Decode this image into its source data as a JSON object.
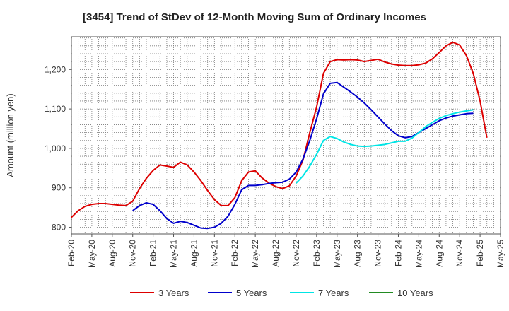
{
  "chart_data": {
    "type": "line",
    "title": "[3454]  Trend of StDev of 12-Month Moving Sum of Ordinary Incomes",
    "ylabel": "Amount (million yen)",
    "xlabel": "",
    "ylim": [
      783,
      1283
    ],
    "yticks": [
      800,
      900,
      1000,
      1100,
      1200
    ],
    "ytick_labels": [
      "800",
      "900",
      "1,000",
      "1,100",
      "1,200"
    ],
    "x_ticks": [
      "Feb-20",
      "May-20",
      "Aug-20",
      "Nov-20",
      "Feb-21",
      "May-21",
      "Aug-21",
      "Nov-21",
      "Feb-22",
      "May-22",
      "Aug-22",
      "Nov-22",
      "Feb-23",
      "May-23",
      "Aug-23",
      "Nov-23",
      "Feb-24",
      "May-24",
      "Aug-24",
      "Nov-24",
      "Feb-25",
      "May-25"
    ],
    "x_start": "Feb-20",
    "grid": true,
    "legend_position": "bottom",
    "series": [
      {
        "name": "3 Years",
        "color": "#dd0000",
        "start": "Feb-20",
        "values": [
          825,
          842,
          853,
          858,
          860,
          860,
          858,
          856,
          855,
          866,
          898,
          924,
          944,
          958,
          955,
          952,
          965,
          958,
          940,
          918,
          893,
          870,
          855,
          855,
          875,
          918,
          940,
          943,
          925,
          912,
          903,
          898,
          905,
          930,
          970,
          1040,
          1105,
          1190,
          1220,
          1225,
          1224,
          1225,
          1224,
          1220,
          1223,
          1226,
          1219,
          1214,
          1211,
          1210,
          1210,
          1212,
          1216,
          1227,
          1243,
          1260,
          1269,
          1262,
          1235,
          1190,
          1120,
          1027
        ]
      },
      {
        "name": "5 Years",
        "color": "#0000cc",
        "start": "Nov-20",
        "values": [
          842,
          855,
          862,
          858,
          842,
          822,
          810,
          815,
          812,
          805,
          798,
          797,
          800,
          810,
          828,
          858,
          895,
          906,
          906,
          908,
          911,
          913,
          914,
          922,
          940,
          973,
          1020,
          1075,
          1138,
          1165,
          1167,
          1155,
          1143,
          1130,
          1115,
          1098,
          1080,
          1062,
          1045,
          1032,
          1027,
          1030,
          1040,
          1050,
          1060,
          1070,
          1077,
          1082,
          1085,
          1088,
          1089
        ]
      },
      {
        "name": "7 Years",
        "color": "#00e5e5",
        "start": "Nov-22",
        "values": [
          912,
          930,
          955,
          985,
          1020,
          1030,
          1025,
          1016,
          1010,
          1006,
          1005,
          1006,
          1008,
          1010,
          1014,
          1018,
          1018,
          1026,
          1040,
          1055,
          1066,
          1076,
          1083,
          1088,
          1092,
          1095,
          1098
        ]
      },
      {
        "name": "10 Years",
        "color": "#228b22",
        "start": "Feb-20",
        "values": []
      }
    ]
  }
}
